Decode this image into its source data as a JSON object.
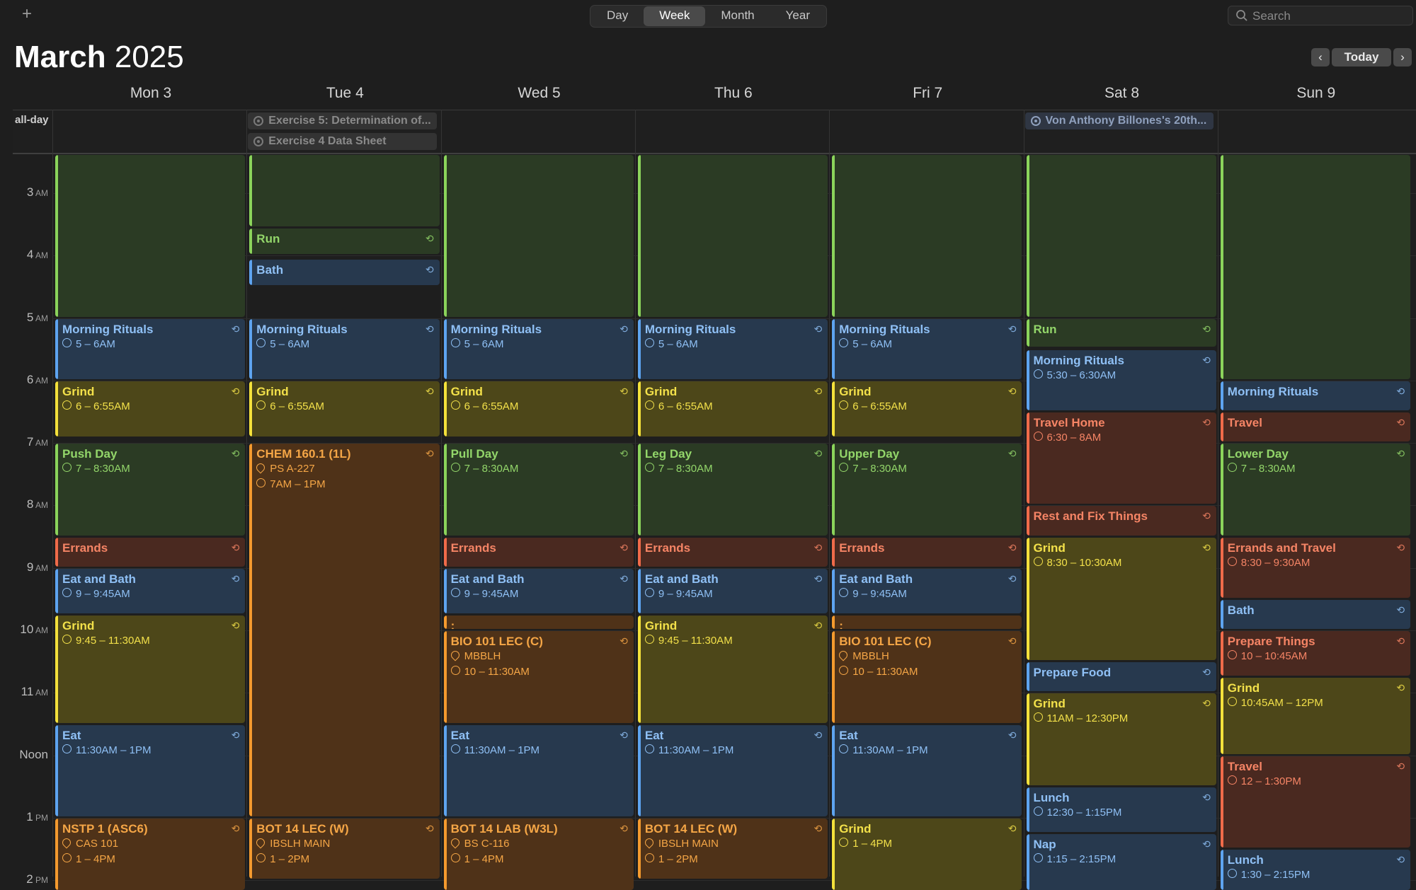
{
  "toolbar": {
    "add_label": "+",
    "views": [
      "Day",
      "Week",
      "Month",
      "Year"
    ],
    "active_view": "Week",
    "search_placeholder": "Search"
  },
  "header": {
    "month": "March",
    "year": "2025",
    "today_label": "Today",
    "prev_label": "‹",
    "next_label": "›"
  },
  "days": [
    "Mon 3",
    "Tue 4",
    "Wed 5",
    "Thu 6",
    "Fri 7",
    "Sat 8",
    "Sun 9"
  ],
  "allday": {
    "label": "all-day",
    "events": [
      {
        "day": 1,
        "row": 0,
        "title": "Exercise 5: Determination of...",
        "kind": "task"
      },
      {
        "day": 1,
        "row": 1,
        "title": "Exercise 4 Data Sheet",
        "kind": "task"
      },
      {
        "day": 5,
        "row": 0,
        "title": "Von Anthony Billones's 20th...",
        "kind": "birthday"
      }
    ]
  },
  "hours": [
    {
      "h": 3,
      "num": "3",
      "ap": "AM"
    },
    {
      "h": 4,
      "num": "4",
      "ap": "AM"
    },
    {
      "h": 5,
      "num": "5",
      "ap": "AM"
    },
    {
      "h": 6,
      "num": "6",
      "ap": "AM"
    },
    {
      "h": 7,
      "num": "7",
      "ap": "AM"
    },
    {
      "h": 8,
      "num": "8",
      "ap": "AM"
    },
    {
      "h": 9,
      "num": "9",
      "ap": "AM"
    },
    {
      "h": 10,
      "num": "10",
      "ap": "AM"
    },
    {
      "h": 11,
      "num": "11",
      "ap": "AM"
    },
    {
      "h": 12,
      "num": "Noon",
      "ap": ""
    },
    {
      "h": 13,
      "num": "1",
      "ap": "PM"
    },
    {
      "h": 14,
      "num": "2",
      "ap": "PM"
    }
  ],
  "events": [
    {
      "day": 0,
      "start": 0,
      "end": 5,
      "color": "green",
      "title": "",
      "rep": false
    },
    {
      "day": 0,
      "start": 5,
      "end": 6,
      "color": "blue",
      "title": "Morning Rituals",
      "time": "5 – 6AM",
      "rep": true
    },
    {
      "day": 0,
      "start": 6,
      "end": 6.92,
      "color": "yellow",
      "title": "Grind",
      "time": "6 – 6:55AM",
      "rep": true
    },
    {
      "day": 0,
      "start": 7,
      "end": 8.5,
      "color": "green",
      "title": "Push Day",
      "time": "7 – 8:30AM",
      "rep": true
    },
    {
      "day": 0,
      "start": 8.5,
      "end": 9,
      "color": "red",
      "title": "Errands",
      "rep": true
    },
    {
      "day": 0,
      "start": 9,
      "end": 9.75,
      "color": "blue",
      "title": "Eat and Bath",
      "time": "9 – 9:45AM",
      "rep": true
    },
    {
      "day": 0,
      "start": 9.75,
      "end": 11.5,
      "color": "yellow",
      "title": "Grind",
      "time": "9:45 – 11:30AM",
      "rep": true
    },
    {
      "day": 0,
      "start": 11.5,
      "end": 13,
      "color": "blue",
      "title": "Eat",
      "time": "11:30AM – 1PM",
      "rep": true
    },
    {
      "day": 0,
      "start": 13,
      "end": 16,
      "color": "orange",
      "title": "NSTP 1 (ASC6)",
      "loc": "CAS 101",
      "time": "1 – 4PM",
      "rep": true
    },
    {
      "day": 1,
      "start": 0,
      "end": 3.55,
      "color": "green",
      "title": "",
      "rep": false
    },
    {
      "day": 1,
      "start": 3.55,
      "end": 4,
      "color": "green",
      "title": "Run",
      "rep": true
    },
    {
      "day": 1,
      "start": 4.05,
      "end": 4.5,
      "color": "blue",
      "title": "Bath",
      "rep": true
    },
    {
      "day": 1,
      "start": 5,
      "end": 6,
      "color": "blue",
      "title": "Morning Rituals",
      "time": "5 – 6AM",
      "rep": true
    },
    {
      "day": 1,
      "start": 6,
      "end": 6.92,
      "color": "yellow",
      "title": "Grind",
      "time": "6 – 6:55AM",
      "rep": true
    },
    {
      "day": 1,
      "start": 7,
      "end": 13,
      "color": "orange",
      "title": "CHEM 160.1 (1L)",
      "loc": "PS A-227",
      "time": "7AM – 1PM",
      "rep": true
    },
    {
      "day": 1,
      "start": 13,
      "end": 14,
      "color": "orange",
      "title": "BOT 14 LEC (W)",
      "loc": "IBSLH MAIN",
      "time": "1 – 2PM",
      "rep": true
    },
    {
      "day": 2,
      "start": 0,
      "end": 5,
      "color": "green",
      "title": "",
      "rep": false
    },
    {
      "day": 2,
      "start": 5,
      "end": 6,
      "color": "blue",
      "title": "Morning Rituals",
      "time": "5 – 6AM",
      "rep": true
    },
    {
      "day": 2,
      "start": 6,
      "end": 6.92,
      "color": "yellow",
      "title": "Grind",
      "time": "6 – 6:55AM",
      "rep": true
    },
    {
      "day": 2,
      "start": 7,
      "end": 8.5,
      "color": "green",
      "title": "Pull Day",
      "time": "7 – 8:30AM",
      "rep": true
    },
    {
      "day": 2,
      "start": 8.5,
      "end": 9,
      "color": "red",
      "title": "Errands",
      "rep": true
    },
    {
      "day": 2,
      "start": 9,
      "end": 9.75,
      "color": "blue",
      "title": "Eat and Bath",
      "time": "9 – 9:45AM",
      "rep": true
    },
    {
      "day": 2,
      "start": 9.75,
      "end": 10,
      "color": "orange",
      "title": ":",
      "rep": false
    },
    {
      "day": 2,
      "start": 10,
      "end": 11.5,
      "color": "orange",
      "title": "BIO 101 LEC (C)",
      "loc": "MBBLH",
      "time": "10 – 11:30AM",
      "rep": true
    },
    {
      "day": 2,
      "start": 11.5,
      "end": 13,
      "color": "blue",
      "title": "Eat",
      "time": "11:30AM – 1PM",
      "rep": true
    },
    {
      "day": 2,
      "start": 13,
      "end": 16,
      "color": "orange",
      "title": "BOT 14 LAB (W3L)",
      "loc": "BS C-116",
      "time": "1 – 4PM",
      "rep": true
    },
    {
      "day": 3,
      "start": 0,
      "end": 5,
      "color": "green",
      "title": "",
      "rep": false
    },
    {
      "day": 3,
      "start": 5,
      "end": 6,
      "color": "blue",
      "title": "Morning Rituals",
      "time": "5 – 6AM",
      "rep": true
    },
    {
      "day": 3,
      "start": 6,
      "end": 6.92,
      "color": "yellow",
      "title": "Grind",
      "time": "6 – 6:55AM",
      "rep": true
    },
    {
      "day": 3,
      "start": 7,
      "end": 8.5,
      "color": "green",
      "title": "Leg Day",
      "time": "7 – 8:30AM",
      "rep": true
    },
    {
      "day": 3,
      "start": 8.5,
      "end": 9,
      "color": "red",
      "title": "Errands",
      "rep": true
    },
    {
      "day": 3,
      "start": 9,
      "end": 9.75,
      "color": "blue",
      "title": "Eat and Bath",
      "time": "9 – 9:45AM",
      "rep": true
    },
    {
      "day": 3,
      "start": 9.75,
      "end": 11.5,
      "color": "yellow",
      "title": "Grind",
      "time": "9:45 – 11:30AM",
      "rep": true
    },
    {
      "day": 3,
      "start": 11.5,
      "end": 13,
      "color": "blue",
      "title": "Eat",
      "time": "11:30AM – 1PM",
      "rep": true
    },
    {
      "day": 3,
      "start": 13,
      "end": 14,
      "color": "orange",
      "title": "BOT 14 LEC (W)",
      "loc": "IBSLH MAIN",
      "time": "1 – 2PM",
      "rep": true
    },
    {
      "day": 4,
      "start": 0,
      "end": 5,
      "color": "green",
      "title": "",
      "rep": false
    },
    {
      "day": 4,
      "start": 5,
      "end": 6,
      "color": "blue",
      "title": "Morning Rituals",
      "time": "5 – 6AM",
      "rep": true
    },
    {
      "day": 4,
      "start": 6,
      "end": 6.92,
      "color": "yellow",
      "title": "Grind",
      "time": "6 – 6:55AM",
      "rep": true
    },
    {
      "day": 4,
      "start": 7,
      "end": 8.5,
      "color": "green",
      "title": "Upper Day",
      "time": "7 – 8:30AM",
      "rep": true
    },
    {
      "day": 4,
      "start": 8.5,
      "end": 9,
      "color": "red",
      "title": "Errands",
      "rep": true
    },
    {
      "day": 4,
      "start": 9,
      "end": 9.75,
      "color": "blue",
      "title": "Eat and Bath",
      "time": "9 – 9:45AM",
      "rep": true
    },
    {
      "day": 4,
      "start": 9.75,
      "end": 10,
      "color": "orange",
      "title": ":",
      "rep": false
    },
    {
      "day": 4,
      "start": 10,
      "end": 11.5,
      "color": "orange",
      "title": "BIO 101 LEC (C)",
      "loc": "MBBLH",
      "time": "10 – 11:30AM",
      "rep": true
    },
    {
      "day": 4,
      "start": 11.5,
      "end": 13,
      "color": "blue",
      "title": "Eat",
      "time": "11:30AM – 1PM",
      "rep": true
    },
    {
      "day": 4,
      "start": 13,
      "end": 16,
      "color": "yellow",
      "title": "Grind",
      "time": "1 – 4PM",
      "rep": true
    },
    {
      "day": 5,
      "start": 0,
      "end": 5,
      "color": "green",
      "title": "",
      "rep": false
    },
    {
      "day": 5,
      "start": 5,
      "end": 5.48,
      "color": "green",
      "title": "Run",
      "rep": true
    },
    {
      "day": 5,
      "start": 5.5,
      "end": 6.5,
      "color": "blue",
      "title": "Morning Rituals",
      "time": "5:30 – 6:30AM",
      "rep": true
    },
    {
      "day": 5,
      "start": 6.5,
      "end": 8,
      "color": "red",
      "title": "Travel Home",
      "time": "6:30 – 8AM",
      "rep": true
    },
    {
      "day": 5,
      "start": 8,
      "end": 8.5,
      "color": "red",
      "title": "Rest and Fix Things",
      "rep": true
    },
    {
      "day": 5,
      "start": 8.5,
      "end": 10.5,
      "color": "yellow",
      "title": "Grind",
      "time": "8:30 – 10:30AM",
      "rep": true
    },
    {
      "day": 5,
      "start": 10.5,
      "end": 11,
      "color": "blue",
      "title": "Prepare Food",
      "rep": true
    },
    {
      "day": 5,
      "start": 11,
      "end": 12.5,
      "color": "yellow",
      "title": "Grind",
      "time": "11AM – 12:30PM",
      "rep": true
    },
    {
      "day": 5,
      "start": 12.5,
      "end": 13.25,
      "color": "blue",
      "title": "Lunch",
      "time": "12:30 – 1:15PM",
      "rep": true
    },
    {
      "day": 5,
      "start": 13.25,
      "end": 14.25,
      "color": "blue",
      "title": "Nap",
      "time": "1:15 – 2:15PM",
      "rep": true
    },
    {
      "day": 6,
      "start": 0,
      "end": 6,
      "color": "green",
      "title": "",
      "rep": false
    },
    {
      "day": 6,
      "start": 6,
      "end": 6.5,
      "color": "blue",
      "title": "Morning Rituals",
      "rep": true
    },
    {
      "day": 6,
      "start": 6.5,
      "end": 7,
      "color": "red",
      "title": "Travel",
      "rep": true
    },
    {
      "day": 6,
      "start": 7,
      "end": 8.5,
      "color": "green",
      "title": "Lower Day",
      "time": "7 – 8:30AM",
      "rep": true
    },
    {
      "day": 6,
      "start": 8.5,
      "end": 9.5,
      "color": "red",
      "title": "Errands and Travel",
      "time": "8:30 – 9:30AM",
      "rep": true
    },
    {
      "day": 6,
      "start": 9.5,
      "end": 10,
      "color": "blue",
      "title": "Bath",
      "rep": true
    },
    {
      "day": 6,
      "start": 10,
      "end": 10.75,
      "color": "red",
      "title": "Prepare Things",
      "time": "10 – 10:45AM",
      "rep": true
    },
    {
      "day": 6,
      "start": 10.75,
      "end": 12,
      "color": "yellow",
      "title": "Grind",
      "time": "10:45AM – 12PM",
      "rep": true
    },
    {
      "day": 6,
      "start": 12,
      "end": 13.5,
      "color": "red",
      "title": "Travel",
      "time": "12 – 1:30PM",
      "rep": true
    },
    {
      "day": 6,
      "start": 13.5,
      "end": 14.25,
      "color": "blue",
      "title": "Lunch",
      "time": "1:30 – 2:15PM",
      "rep": true
    }
  ]
}
